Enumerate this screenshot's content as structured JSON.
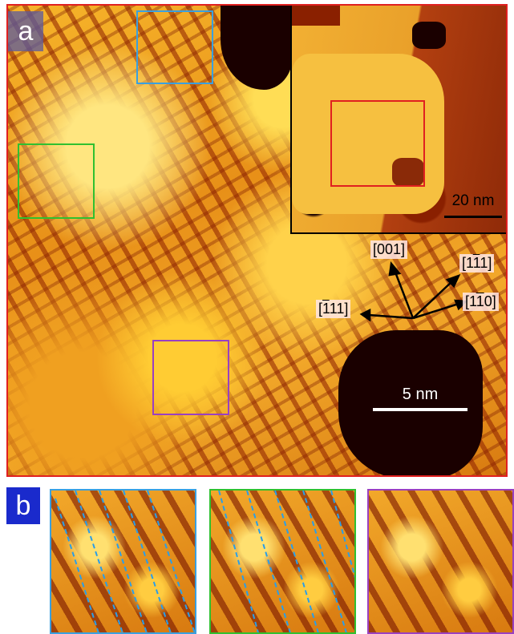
{
  "panel_a": {
    "label": "a",
    "frame_color": "#e02020",
    "scale_bar": "5 nm",
    "inset": {
      "scale_bar": "20 nm",
      "frame_color": "#000000",
      "roi_color": "#e02020"
    },
    "directions": [
      "[001]",
      "[1̅1̅ 1]",
      "[1̅1 1]",
      "[11̅0]"
    ],
    "roi_colors": {
      "blue": "#3aa0e0",
      "green": "#30c030",
      "purple": "#9a40c0"
    }
  },
  "panel_b": {
    "label": "b",
    "label_bg": "#1a2acc",
    "dashed_line_color": "#2a9ee8"
  }
}
